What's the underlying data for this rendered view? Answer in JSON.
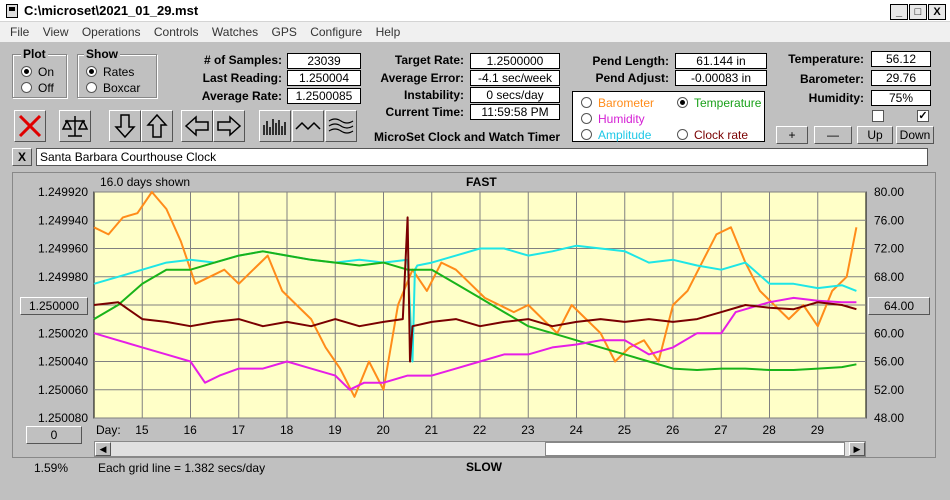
{
  "window": {
    "title": "C:\\microset\\2021_01_29.mst",
    "min": "_",
    "max": "□",
    "close": "X"
  },
  "menu": [
    "File",
    "View",
    "Operations",
    "Controls",
    "Watches",
    "GPS",
    "Configure",
    "Help"
  ],
  "plot": {
    "legend": "Plot",
    "on": "On",
    "off": "Off"
  },
  "show": {
    "legend": "Show",
    "rates": "Rates",
    "boxcar": "Boxcar"
  },
  "stats": {
    "samples_label": "# of Samples:",
    "samples": "23039",
    "last_label": "Last Reading:",
    "last": "1.250004",
    "avg_label": "Average Rate:",
    "avg": "1.2500085"
  },
  "rates": {
    "target_label": "Target Rate:",
    "target": "1.2500000",
    "error_label": "Average Error:",
    "error": "-4.1 sec/week",
    "instab_label": "Instability:",
    "instab": "0 secs/day",
    "time_label": "Current Time:",
    "time": "11:59:58 PM"
  },
  "app_name": "MicroSet Clock and Watch Timer",
  "pend": {
    "length_label": "Pend Length:",
    "length": "61.144 in",
    "adjust_label": "Pend Adjust:",
    "adjust": "-0.00083 in"
  },
  "sensors": {
    "barometer": "Barometer",
    "humidity": "Humidity",
    "amplitude": "Amplitude",
    "temperature": "Temperature",
    "clock_rate": "Clock rate"
  },
  "env": {
    "temp_label": "Temperature:",
    "temp": "56.12",
    "baro_label": "Barometer:",
    "baro": "29.76",
    "hum_label": "Humidity:",
    "hum": "75%"
  },
  "scale_buttons": {
    "plus": "+",
    "minus": "—",
    "up": "Up",
    "down": "Down"
  },
  "clock_name": "Santa Barbara Courthouse Clock",
  "clear_btn": "X",
  "chart_data": {
    "type": "line",
    "title": "FAST",
    "bottom_label": "SLOW",
    "days_shown": "16.0 days shown",
    "grid_note": "Each grid line = 1.382 secs/day",
    "left_ticks": [
      "1.249920",
      "1.249940",
      "1.249960",
      "1.249980",
      "1.250000",
      "1.250020",
      "1.250040",
      "1.250060",
      "1.250080"
    ],
    "right_ticks": [
      "80.00",
      "76.00",
      "72.00",
      "68.00",
      "64.00",
      "60.00",
      "56.00",
      "52.00",
      "48.00"
    ],
    "left_btn": "1.250000",
    "right_btn": "64.00",
    "day_label": "Day:",
    "days": [
      "15",
      "16",
      "17",
      "18",
      "19",
      "20",
      "21",
      "22",
      "23",
      "24",
      "25",
      "26",
      "27",
      "28",
      "29"
    ],
    "series": [
      {
        "name": "Barometer",
        "color": "#ff8c1a",
        "x": [
          14.0,
          14.3,
          14.6,
          14.9,
          15.2,
          15.5,
          15.8,
          16.1,
          16.4,
          16.7,
          17.0,
          17.3,
          17.6,
          17.9,
          18.2,
          18.5,
          18.8,
          19.1,
          19.4,
          19.7,
          20.0,
          20.3,
          20.6,
          20.9,
          21.2,
          21.5,
          21.8,
          22.1,
          22.4,
          22.7,
          23.0,
          23.3,
          23.6,
          23.9,
          24.2,
          24.5,
          24.8,
          25.1,
          25.4,
          25.7,
          26.0,
          26.3,
          26.6,
          26.9,
          27.2,
          27.5,
          27.8,
          28.1,
          28.4,
          28.7,
          29.0,
          29.3,
          29.6,
          29.8
        ],
        "y": [
          1.249945,
          1.24995,
          1.249938,
          1.249935,
          1.24992,
          1.249932,
          1.249955,
          1.249985,
          1.24998,
          1.249975,
          1.249985,
          1.249975,
          1.249965,
          1.24999,
          1.25,
          1.25001,
          1.25003,
          1.250045,
          1.250065,
          1.25004,
          1.25006,
          1.25,
          1.249975,
          1.24999,
          1.24997,
          1.249975,
          1.249985,
          1.249995,
          1.25,
          1.250005,
          1.25,
          1.25001,
          1.25002,
          1.25,
          1.25001,
          1.25002,
          1.25004,
          1.25003,
          1.250025,
          1.25004,
          1.25,
          1.24999,
          1.24997,
          1.24995,
          1.249945,
          1.24997,
          1.24999,
          1.25,
          1.25001,
          1.25,
          1.250015,
          1.24999,
          1.24998,
          1.249945
        ]
      },
      {
        "name": "Amplitude",
        "color": "#1ee6e6",
        "x": [
          14.0,
          14.5,
          15.0,
          15.5,
          16.0,
          16.5,
          17.0,
          17.5,
          18.0,
          18.5,
          19.0,
          19.5,
          20.0,
          20.5,
          20.6,
          20.65,
          20.7,
          21.0,
          21.5,
          22.0,
          22.5,
          23.0,
          23.5,
          24.0,
          24.5,
          25.0,
          25.5,
          26.0,
          26.5,
          27.0,
          27.5,
          28.0,
          28.5,
          29.0,
          29.5,
          29.8
        ],
        "y": [
          1.249985,
          1.24998,
          1.249975,
          1.24997,
          1.249968,
          1.24997,
          1.249965,
          1.249962,
          1.249965,
          1.249968,
          1.24997,
          1.249968,
          1.24997,
          1.249968,
          1.25004,
          1.249975,
          1.249972,
          1.24997,
          1.249965,
          1.24996,
          1.24996,
          1.249965,
          1.249962,
          1.249958,
          1.24996,
          1.249962,
          1.24997,
          1.249968,
          1.249972,
          1.249975,
          1.24997,
          1.249985,
          1.249985,
          1.249988,
          1.249986,
          1.24999
        ]
      },
      {
        "name": "Temperature",
        "color": "#19b319",
        "x": [
          14.0,
          14.5,
          15.0,
          15.5,
          16.0,
          16.5,
          17.0,
          17.5,
          18.0,
          18.5,
          19.0,
          19.5,
          20.0,
          20.5,
          21.0,
          21.5,
          22.0,
          22.5,
          23.0,
          23.5,
          24.0,
          24.5,
          25.0,
          25.5,
          26.0,
          26.5,
          27.0,
          27.5,
          28.0,
          28.5,
          29.0,
          29.5,
          29.8
        ],
        "y": [
          1.25001,
          1.25,
          1.249985,
          1.249975,
          1.249975,
          1.24997,
          1.249965,
          1.249962,
          1.249965,
          1.249968,
          1.24997,
          1.249972,
          1.24997,
          1.249975,
          1.249975,
          1.249985,
          1.249995,
          1.250005,
          1.250015,
          1.25002,
          1.250025,
          1.25003,
          1.250035,
          1.25004,
          1.250045,
          1.250046,
          1.250045,
          1.250045,
          1.250046,
          1.250046,
          1.250045,
          1.250044,
          1.250042
        ]
      },
      {
        "name": "Humidity",
        "color": "#e61ee6",
        "x": [
          14.0,
          14.5,
          15.0,
          15.5,
          16.0,
          16.3,
          16.6,
          17.0,
          17.5,
          18.0,
          18.5,
          19.0,
          19.3,
          19.6,
          20.0,
          20.5,
          21.0,
          21.5,
          22.0,
          22.5,
          23.0,
          23.5,
          24.0,
          24.5,
          25.0,
          25.5,
          26.0,
          26.5,
          27.0,
          27.3,
          27.6,
          28.0,
          28.5,
          29.0,
          29.5,
          29.8
        ],
        "y": [
          1.25002,
          1.250025,
          1.25003,
          1.250035,
          1.25004,
          1.250055,
          1.25005,
          1.250045,
          1.250045,
          1.25004,
          1.250045,
          1.25005,
          1.25006,
          1.250055,
          1.250055,
          1.25005,
          1.25005,
          1.250045,
          1.25004,
          1.250035,
          1.250035,
          1.25003,
          1.250028,
          1.250025,
          1.250025,
          1.250035,
          1.25003,
          1.25002,
          1.25002,
          1.250005,
          1.250002,
          1.249998,
          1.249995,
          1.249997,
          1.249998,
          1.249998
        ]
      },
      {
        "name": "Clock rate",
        "color": "#7a0000",
        "x": [
          14.0,
          14.5,
          15.0,
          15.5,
          16.0,
          16.5,
          17.0,
          17.5,
          18.0,
          18.5,
          19.0,
          19.5,
          20.0,
          20.4,
          20.5,
          20.55,
          20.6,
          21.0,
          21.5,
          22.0,
          22.5,
          23.0,
          23.5,
          24.0,
          24.5,
          25.0,
          25.5,
          26.0,
          26.5,
          27.0,
          27.5,
          28.0,
          28.5,
          29.0,
          29.5,
          29.8
        ],
        "y": [
          1.25,
          1.249998,
          1.25001,
          1.250012,
          1.250015,
          1.250012,
          1.25001,
          1.250015,
          1.250012,
          1.250015,
          1.25001,
          1.250015,
          1.250012,
          1.25001,
          1.249938,
          1.25004,
          1.250015,
          1.250012,
          1.25001,
          1.250015,
          1.250012,
          1.25001,
          1.250015,
          1.250012,
          1.25001,
          1.250012,
          1.25001,
          1.250012,
          1.25001,
          1.250005,
          1.25,
          1.250002,
          1.250003,
          1.249998,
          1.25,
          1.250003
        ]
      }
    ]
  }
}
